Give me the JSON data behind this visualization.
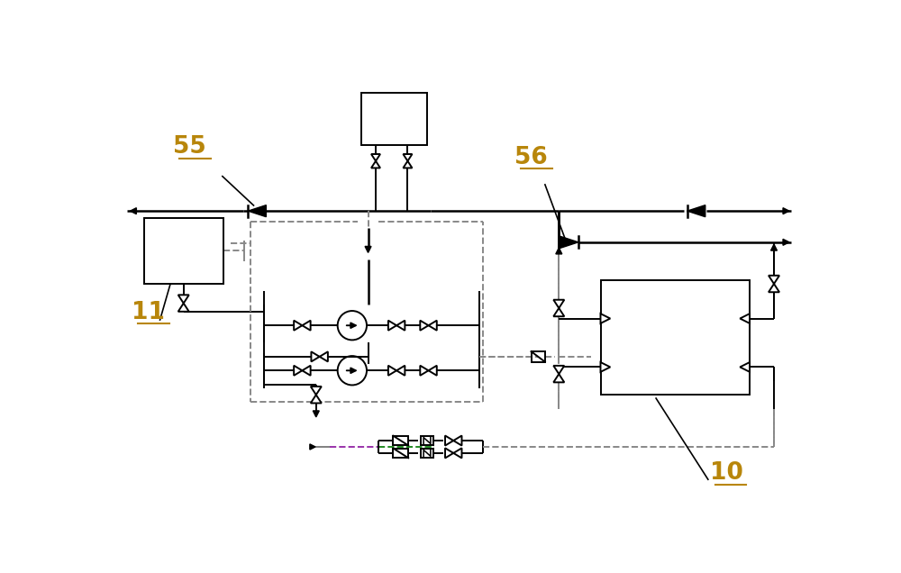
{
  "bg_color": "#ffffff",
  "lc": "#000000",
  "dc": "#888888",
  "label_color": "#B8860B",
  "label_55": "55",
  "label_56": "56",
  "label_11": "11",
  "label_10": "10",
  "fig_w": 10.0,
  "fig_h": 6.36,
  "dpi": 100
}
